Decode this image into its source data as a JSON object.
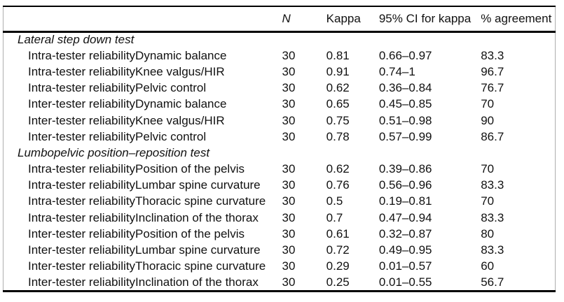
{
  "table": {
    "header": {
      "col_label": "",
      "col_n": "N",
      "col_kappa": "Kappa",
      "col_ci": "95% CI for kappa",
      "col_agreement": "% agreement"
    },
    "rows": [
      {
        "type": "section",
        "label": "Lateral step down test"
      },
      {
        "type": "data",
        "label": "Intra-tester reliabilityDynamic balance",
        "n": "30",
        "kappa": "0.81",
        "ci": "0.66–0.97",
        "agreement": "83.3"
      },
      {
        "type": "data",
        "label": "Intra-tester reliabilityKnee valgus/HIR",
        "n": "30",
        "kappa": "0.91",
        "ci": "0.74–1",
        "agreement": "96.7"
      },
      {
        "type": "data",
        "label": "Intra-tester reliabilityPelvic control",
        "n": "30",
        "kappa": "0.62",
        "ci": "0.36–0.84",
        "agreement": "76.7"
      },
      {
        "type": "data",
        "label": "Inter-tester reliabilityDynamic balance",
        "n": "30",
        "kappa": "0.65",
        "ci": "0.45–0.85",
        "agreement": "70"
      },
      {
        "type": "data",
        "label": "Inter-tester reliabilityKnee valgus/HIR",
        "n": "30",
        "kappa": "0.75",
        "ci": "0.51–0.98",
        "agreement": "90"
      },
      {
        "type": "data",
        "label": "Inter-tester reliabilityPelvic control",
        "n": "30",
        "kappa": "0.78",
        "ci": "0.57–0.99",
        "agreement": "86.7"
      },
      {
        "type": "section",
        "label": "Lumbopelvic position–reposition test"
      },
      {
        "type": "data",
        "label": "Intra-tester reliabilityPosition of the pelvis",
        "n": "30",
        "kappa": "0.62",
        "ci": "0.39–0.86",
        "agreement": "70"
      },
      {
        "type": "data",
        "label": "Intra-tester reliabilityLumbar spine curvature",
        "n": "30",
        "kappa": "0.76",
        "ci": "0.56–0.96",
        "agreement": "83.3"
      },
      {
        "type": "data",
        "label": "Intra-tester reliabilityThoracic spine curvature",
        "n": "30",
        "kappa": "0.5",
        "ci": "0.19–0.81",
        "agreement": "70"
      },
      {
        "type": "data",
        "label": "Intra-tester reliabilityInclination of the thorax",
        "n": "30",
        "kappa": "0.7",
        "ci": "0.47–0.94",
        "agreement": "83.3"
      },
      {
        "type": "data",
        "label": "Inter-tester reliabilityPosition of the pelvis",
        "n": "30",
        "kappa": "0.61",
        "ci": "0.32–0.87",
        "agreement": "80"
      },
      {
        "type": "data",
        "label": "Inter-tester reliabilityLumbar spine curvature",
        "n": "30",
        "kappa": "0.72",
        "ci": "0.49–0.95",
        "agreement": "83.3"
      },
      {
        "type": "data",
        "label": "Inter-tester reliabilityThoracic spine curvature",
        "n": "30",
        "kappa": "0.29",
        "ci": "0.01–0.57",
        "agreement": "60"
      },
      {
        "type": "data",
        "label": "Inter-tester reliabilityInclination of the thorax",
        "n": "30",
        "kappa": "0.25",
        "ci": "0.01–0.55",
        "agreement": "56.7"
      }
    ]
  }
}
